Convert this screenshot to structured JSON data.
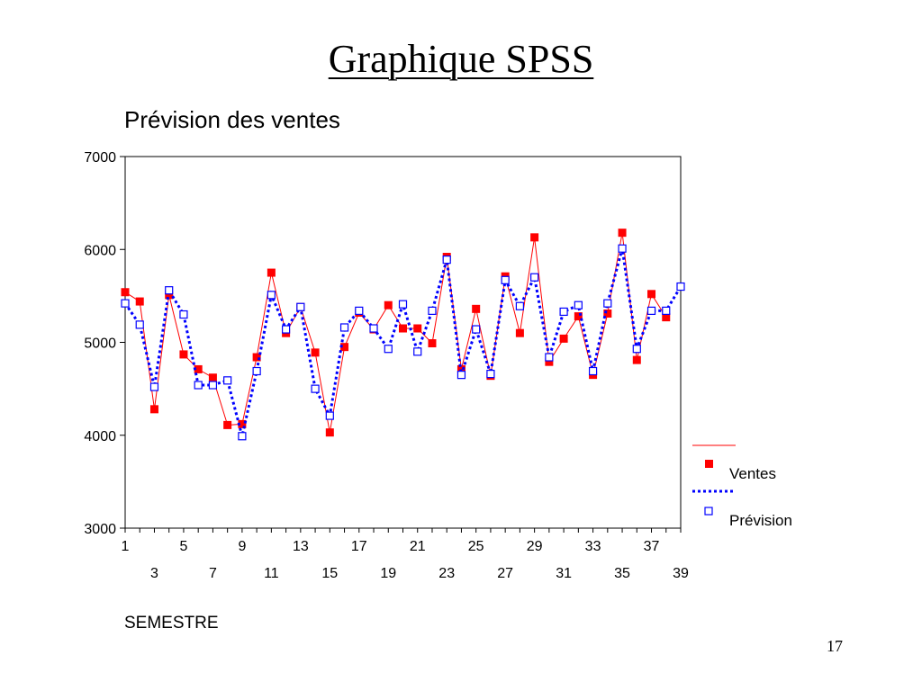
{
  "slide": {
    "title": "Graphique SPSS",
    "page_number": "17"
  },
  "chart_data": {
    "type": "line",
    "title": "Prévision des ventes",
    "xlabel": "SEMESTRE",
    "ylabel": "",
    "ylim": [
      3000,
      7000
    ],
    "yticks": [
      3000,
      4000,
      5000,
      6000,
      7000
    ],
    "xticks_upper": [
      1,
      5,
      9,
      13,
      17,
      21,
      25,
      29,
      33,
      37
    ],
    "xticks_lower": [
      3,
      7,
      11,
      15,
      19,
      23,
      27,
      31,
      35,
      39
    ],
    "grid": false,
    "legend_position": "right",
    "series": [
      {
        "name": "Ventes",
        "color": "#ff0000",
        "line_style": "solid",
        "marker": "filled-square",
        "x": [
          1,
          2,
          3,
          4,
          5,
          6,
          7,
          8,
          9,
          10,
          11,
          12,
          13,
          14,
          15,
          16,
          17,
          18,
          19,
          20,
          21,
          22,
          23,
          24,
          25,
          26,
          27,
          28,
          29,
          30,
          31,
          32,
          33,
          34,
          35,
          36,
          37,
          38
        ],
        "values": [
          5540,
          5440,
          4280,
          5510,
          4870,
          4710,
          4620,
          4110,
          4120,
          4840,
          5750,
          5100,
          5380,
          4890,
          4030,
          4950,
          5320,
          5140,
          5400,
          5150,
          5150,
          4990,
          5920,
          4710,
          5360,
          4640,
          5710,
          5100,
          6130,
          4790,
          5040,
          5280,
          4650,
          5310,
          6180,
          4810,
          5520,
          5270
        ]
      },
      {
        "name": "Prévision",
        "color": "#0000ff",
        "line_style": "dotted",
        "marker": "hollow-square",
        "x": [
          1,
          2,
          3,
          4,
          5,
          6,
          7,
          8,
          9,
          10,
          11,
          12,
          13,
          14,
          15,
          16,
          17,
          18,
          19,
          20,
          21,
          22,
          23,
          24,
          25,
          26,
          27,
          28,
          29,
          30,
          31,
          32,
          33,
          34,
          35,
          36,
          37,
          38,
          39
        ],
        "values": [
          5420,
          5190,
          4520,
          5560,
          5300,
          4540,
          4540,
          4590,
          3990,
          4690,
          5510,
          5140,
          5380,
          4500,
          4210,
          5160,
          5340,
          5150,
          4930,
          5410,
          4900,
          5340,
          5890,
          4650,
          5140,
          4660,
          5670,
          5390,
          5700,
          4840,
          5330,
          5400,
          4690,
          5420,
          6010,
          4930,
          5340,
          5340,
          5600
        ]
      }
    ]
  }
}
